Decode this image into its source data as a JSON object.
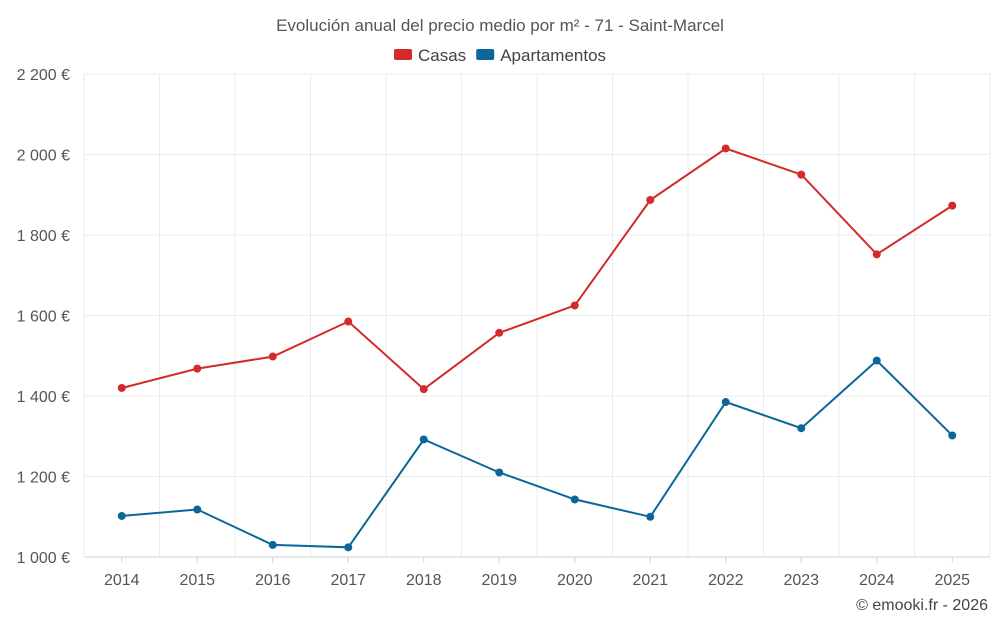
{
  "chart_data": {
    "type": "line",
    "title": "Evolución anual del precio medio por m² - 71 - Saint-Marcel",
    "categories": [
      "2014",
      "2015",
      "2016",
      "2017",
      "2018",
      "2019",
      "2020",
      "2021",
      "2022",
      "2023",
      "2024",
      "2025"
    ],
    "series": [
      {
        "name": "Casas",
        "color": "#d42a2a",
        "values": [
          1420,
          1468,
          1498,
          1585,
          1417,
          1557,
          1625,
          1887,
          2015,
          1950,
          1752,
          1873
        ]
      },
      {
        "name": "Apartamentos",
        "color": "#0d6699",
        "values": [
          1102,
          1118,
          1030,
          1024,
          1292,
          1210,
          1143,
          1100,
          1385,
          1320,
          1488,
          1302
        ]
      }
    ],
    "ylim": [
      1000,
      2200
    ],
    "yticks": [
      1000,
      1200,
      1400,
      1600,
      1800,
      2000,
      2200
    ],
    "ytick_labels": [
      "1 000 €",
      "1 200 €",
      "1 400 €",
      "1 600 €",
      "1 800 €",
      "2 000 €",
      "2 200 €"
    ],
    "xlabel": "",
    "ylabel": "",
    "legend_position": "top-center",
    "grid": true,
    "credit": "© emooki.fr - 2026"
  }
}
